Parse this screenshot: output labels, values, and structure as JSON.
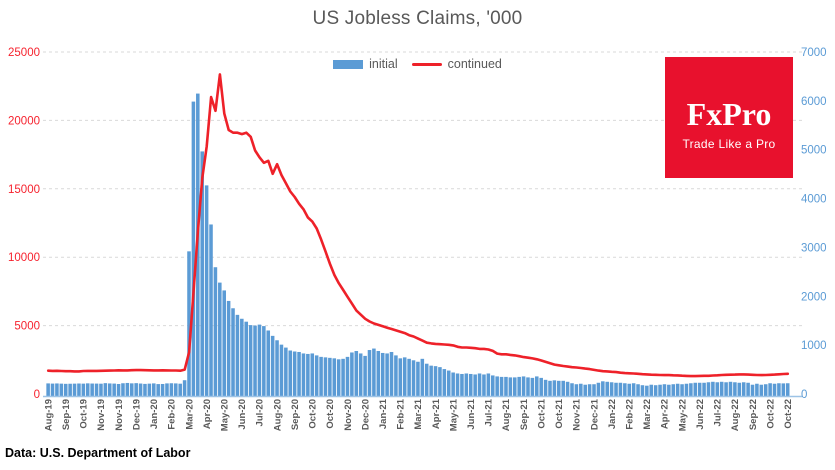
{
  "title": "US Jobless Claims, '000",
  "legend": {
    "initial_label": "initial",
    "continued_label": "continued"
  },
  "logo": {
    "brand": "FxPro",
    "tagline": "Trade Like a Pro",
    "bg_color": "#e8112d"
  },
  "footer": {
    "source": "Data: U.S. Department of Labor"
  },
  "colors": {
    "bar": "#5b9bd5",
    "line": "#ee2129",
    "left_axis_text": "#f6222e",
    "right_axis_text": "#5b9bd5",
    "grid": "#d9d9d9",
    "axis_line": "#9dc3e6",
    "title_text": "#595959",
    "xlabel_text": "#595959"
  },
  "chart_data": {
    "type": "bar",
    "subtype": "dual-axis bar+line, weekly data Aug-2019 .. Oct-2022",
    "title": "US Jobless Claims, '000",
    "xlabel": "",
    "ylabel_left": "continued claims, '000 (red axis)",
    "ylabel_right": "initial claims, '000 (blue axis)",
    "grid": "horizontal dashed",
    "legend_position": "top-center",
    "left_axis": {
      "min": 0,
      "max": 25000,
      "ticks": [
        0,
        5000,
        10000,
        15000,
        20000,
        25000
      ],
      "color": "#f6222e"
    },
    "right_axis": {
      "min": 0,
      "max": 7000,
      "ticks": [
        0,
        1000,
        2000,
        3000,
        4000,
        5000,
        6000,
        7000
      ],
      "color": "#5b9bd5"
    },
    "x_tick_every_n_weeks": 4,
    "x_tick_labels": [
      "Aug-19",
      "Sep-19",
      "Oct-19",
      "Nov-19",
      "Nov-19",
      "Dec-19",
      "Jan-20",
      "Feb-20",
      "Mar-20",
      "Apr-20",
      "May-20",
      "Jun-20",
      "Jul-20",
      "Aug-20",
      "Sep-20",
      "Oct-20",
      "Oct-20",
      "Nov-20",
      "Dec-20",
      "Jan-21",
      "Feb-21",
      "Mar-21",
      "Apr-21",
      "May-21",
      "Jun-21",
      "Jul-21",
      "Aug-21",
      "Sep-21",
      "Oct-21",
      "Oct-21",
      "Nov-21",
      "Dec-21",
      "Jan-22",
      "Feb-22",
      "Mar-22",
      "Apr-22",
      "May-22",
      "Jun-22",
      "Jul-22",
      "Aug-22",
      "Sep-22",
      "Oct-22",
      "Oct-22"
    ],
    "series": [
      {
        "name": "initial",
        "type": "bar",
        "axis": "right",
        "color": "#5b9bd5",
        "values": [
          217,
          213,
          216,
          212,
          208,
          210,
          212,
          215,
          212,
          218,
          214,
          213,
          211,
          222,
          216,
          213,
          205,
          220,
          226,
          218,
          222,
          214,
          207,
          212,
          217,
          203,
          205,
          217,
          220,
          217,
          211,
          282,
          2920,
          5985,
          6149,
          4965,
          4270,
          3470,
          2595,
          2280,
          2120,
          1905,
          1755,
          1620,
          1540,
          1480,
          1410,
          1400,
          1420,
          1390,
          1300,
          1190,
          1100,
          1010,
          950,
          890,
          870,
          860,
          830,
          820,
          830,
          790,
          760,
          750,
          740,
          730,
          710,
          720,
          760,
          850,
          880,
          830,
          780,
          900,
          930,
          880,
          840,
          830,
          860,
          790,
          730,
          750,
          720,
          690,
          660,
          720,
          620,
          580,
          570,
          550,
          510,
          480,
          440,
          420,
          410,
          420,
          410,
          400,
          420,
          400,
          420,
          380,
          360,
          350,
          350,
          340,
          340,
          350,
          360,
          340,
          330,
          360,
          330,
          290,
          270,
          280,
          270,
          270,
          250,
          220,
          200,
          210,
          190,
          200,
          200,
          230,
          260,
          250,
          240,
          230,
          230,
          220,
          210,
          220,
          200,
          180,
          170,
          190,
          180,
          190,
          200,
          190,
          200,
          210,
          200,
          210,
          220,
          230,
          230,
          230,
          240,
          250,
          240,
          250,
          240,
          250,
          240,
          230,
          240,
          230,
          190,
          210,
          190,
          200,
          220,
          210,
          220,
          217,
          220
        ]
      },
      {
        "name": "continued",
        "type": "line",
        "axis": "left",
        "color": "#ee2129",
        "values": [
          1700,
          1690,
          1695,
          1680,
          1670,
          1665,
          1655,
          1650,
          1680,
          1685,
          1690,
          1692,
          1695,
          1700,
          1710,
          1720,
          1730,
          1725,
          1728,
          1740,
          1745,
          1750,
          1740,
          1730,
          1722,
          1725,
          1730,
          1726,
          1720,
          1715,
          1702,
          1784,
          3059,
          7446,
          11900,
          15800,
          18100,
          21700,
          20700,
          23360,
          20500,
          19300,
          19100,
          19100,
          19000,
          19100,
          18800,
          17800,
          17300,
          16900,
          17050,
          16100,
          16800,
          16000,
          15400,
          14800,
          14400,
          13900,
          13500,
          12900,
          12600,
          12100,
          11300,
          10400,
          9500,
          8700,
          8100,
          7600,
          7100,
          6600,
          6100,
          5800,
          5500,
          5300,
          5150,
          5050,
          4950,
          4850,
          4750,
          4650,
          4550,
          4450,
          4300,
          4200,
          4050,
          3900,
          3750,
          3700,
          3660,
          3640,
          3620,
          3600,
          3550,
          3450,
          3400,
          3400,
          3380,
          3350,
          3300,
          3300,
          3250,
          3150,
          2950,
          2900,
          2900,
          2860,
          2820,
          2760,
          2700,
          2650,
          2600,
          2540,
          2450,
          2350,
          2250,
          2150,
          2100,
          2050,
          2000,
          1960,
          1940,
          1900,
          1860,
          1820,
          1760,
          1710,
          1670,
          1650,
          1620,
          1600,
          1560,
          1530,
          1510,
          1500,
          1480,
          1450,
          1430,
          1410,
          1400,
          1390,
          1385,
          1380,
          1370,
          1360,
          1340,
          1320,
          1310,
          1310,
          1320,
          1330,
          1330,
          1350,
          1370,
          1390,
          1400,
          1410,
          1420,
          1430,
          1430,
          1420,
          1400,
          1390,
          1380,
          1390,
          1400,
          1420,
          1440,
          1460,
          1480
        ]
      }
    ]
  }
}
